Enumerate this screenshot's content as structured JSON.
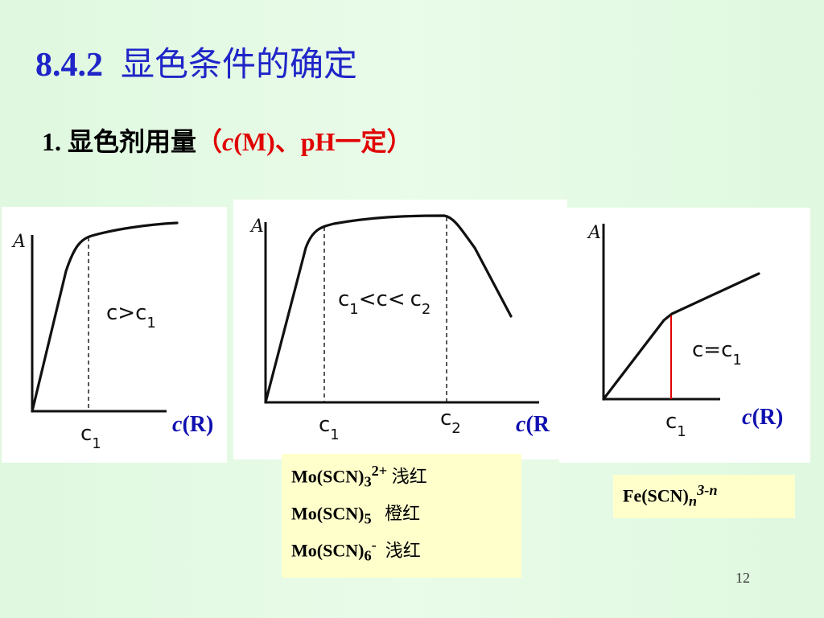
{
  "title": {
    "number": "8.4.2",
    "text": "显色条件的确定"
  },
  "subtitle": {
    "prefix": "1. 显色剂用量",
    "open": "（",
    "c": "c",
    "rest": "(M)、pH一定",
    "close": "）"
  },
  "graphs": [
    {
      "y_axis": "A",
      "x_tick": "c",
      "x_tick_sub": "1",
      "annotation": "c>c",
      "annotation_sub": "1",
      "x_label_c": "c",
      "x_label_rest": "(R)"
    },
    {
      "y_axis": "A",
      "x_tick_1": "c",
      "x_tick_1_sub": "1",
      "x_tick_2": "c",
      "x_tick_2_sub": "2",
      "annotation_a": "c",
      "annotation_a_sub": "1",
      "annotation_b": "<c<",
      "annotation_c": "c",
      "annotation_c_sub": "2",
      "x_label_c": "c",
      "x_label_rest": "(R"
    },
    {
      "y_axis": "A",
      "x_tick": "c",
      "x_tick_sub": "1",
      "annotation": "c=c",
      "annotation_sub": "1",
      "x_label_c": "c",
      "x_label_rest": "(R)",
      "marker_color": "#e00000"
    }
  ],
  "note_mo": [
    {
      "formula": "Mo(SCN)",
      "sub": "3",
      "sup": "2+",
      "color_text": "浅红"
    },
    {
      "formula": "Mo(SCN)",
      "sub": "5",
      "sup": "",
      "color_text": "橙红"
    },
    {
      "formula": "Mo(SCN)",
      "sub": "6",
      "sup": "-",
      "color_text": "浅红"
    }
  ],
  "note_fe": {
    "formula": "Fe(SCN)",
    "sub": "n",
    "sup": "3-n"
  },
  "page_number": "12"
}
